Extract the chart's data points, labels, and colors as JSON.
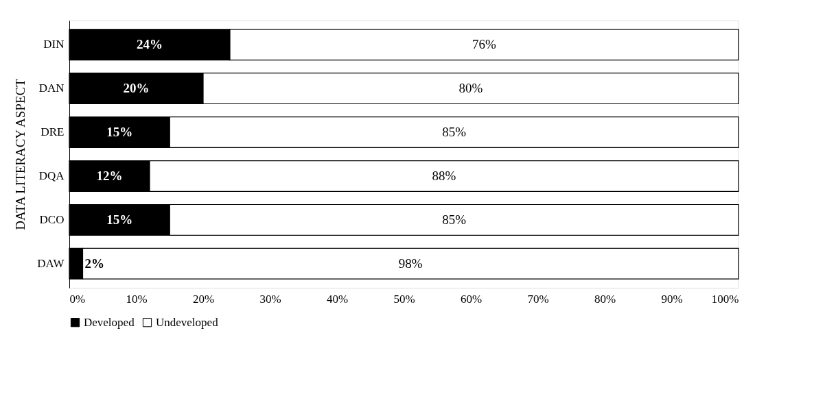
{
  "chart_data": {
    "type": "bar",
    "orientation": "horizontal",
    "stacked": true,
    "ylabel": "DATA LITERACY ASPECT",
    "categories": [
      "DIN",
      "DAN",
      "DRE",
      "DQA",
      "DCO",
      "DAW"
    ],
    "series": [
      {
        "name": "Developed",
        "color": "#000000",
        "values": [
          24,
          20,
          15,
          12,
          15,
          2
        ],
        "value_labels": [
          "24%",
          "20%",
          "15%",
          "12%",
          "15%",
          "2%"
        ]
      },
      {
        "name": "Undeveloped",
        "color": "#ffffff",
        "values": [
          76,
          80,
          85,
          88,
          85,
          98
        ],
        "value_labels": [
          "76%",
          "80%",
          "85%",
          "88%",
          "85%",
          "98%"
        ]
      }
    ],
    "xlim": [
      0,
      100
    ],
    "xticks": [
      {
        "value": 0,
        "label": "0%"
      },
      {
        "value": 10,
        "label": "10%"
      },
      {
        "value": 20,
        "label": "20%"
      },
      {
        "value": 30,
        "label": "30%"
      },
      {
        "value": 40,
        "label": "40%"
      },
      {
        "value": 50,
        "label": "50%"
      },
      {
        "value": 60,
        "label": "60%"
      },
      {
        "value": 70,
        "label": "70%"
      },
      {
        "value": 80,
        "label": "80%"
      },
      {
        "value": 90,
        "label": "90%"
      },
      {
        "value": 100,
        "label": "100%"
      }
    ],
    "grid": false,
    "legend": "bottom"
  }
}
